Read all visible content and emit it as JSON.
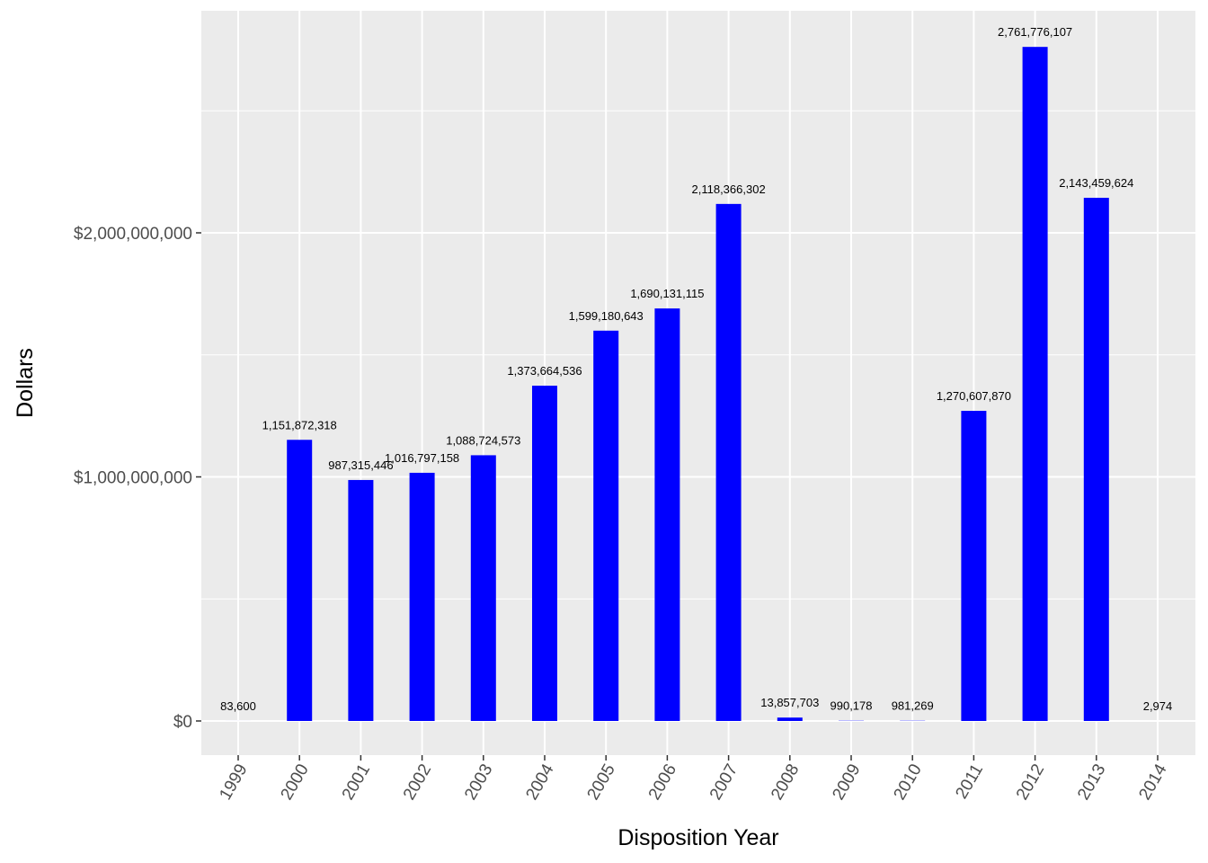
{
  "chart_data": {
    "type": "bar",
    "title": "",
    "xlabel": "Disposition Year",
    "ylabel": "Dollars",
    "categories": [
      "1999",
      "2000",
      "2001",
      "2002",
      "2003",
      "2004",
      "2005",
      "2006",
      "2007",
      "2008",
      "2009",
      "2010",
      "2011",
      "2012",
      "2013",
      "2014"
    ],
    "values": [
      83600,
      1151872318,
      987315446,
      1016797158,
      1088724573,
      1373664536,
      1599180643,
      1690131115,
      2118366302,
      13857703,
      990178,
      981269,
      1270607870,
      2761776107,
      2143459624,
      2974
    ],
    "data_labels": [
      "83,600",
      "1,151,872,318",
      "987,315,446",
      "1,016,797,158",
      "1,088,724,573",
      "1,373,664,536",
      "1,599,180,643",
      "1,690,131,115",
      "2,118,366,302",
      "13,857,703",
      "990,178",
      "981,269",
      "1,270,607,870",
      "2,761,776,107",
      "2,143,459,624",
      "2,974"
    ],
    "y_ticks": [
      0,
      1000000000,
      2000000000
    ],
    "y_tick_labels": [
      "$0",
      "$1,000,000,000",
      "$2,000,000,000"
    ],
    "ylim": [
      -140000000,
      2920000000
    ],
    "grid": true,
    "legend": "none",
    "colors": {
      "bar": "#0000ff",
      "panel_background": "#ebebeb",
      "grid": "#ffffff"
    }
  }
}
